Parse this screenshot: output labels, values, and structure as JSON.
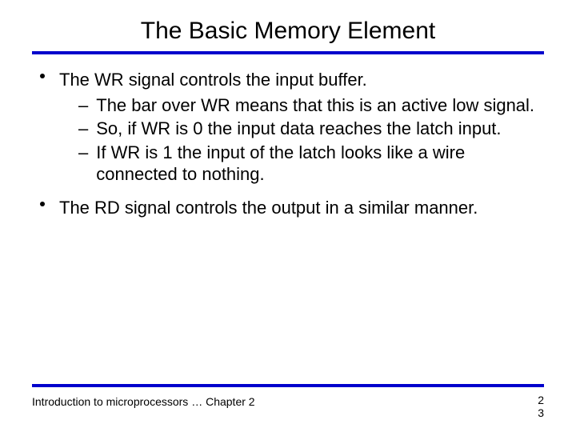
{
  "title": "The Basic Memory Element",
  "colors": {
    "rule": "#0000cc",
    "text": "#000000",
    "background": "#ffffff"
  },
  "bullets": [
    {
      "text": "The WR signal controls the input buffer.",
      "subs": [
        "The bar over WR means that this is an active low signal.",
        "So, if WR is 0 the input data reaches the latch input.",
        "If WR is 1 the input of the latch looks like a wire connected to nothing."
      ]
    },
    {
      "text": "The RD signal controls the output in a similar manner.",
      "subs": []
    }
  ],
  "footer": "Introduction to microprocessors … Chapter 2",
  "page_top": "2",
  "page_bottom": "3"
}
